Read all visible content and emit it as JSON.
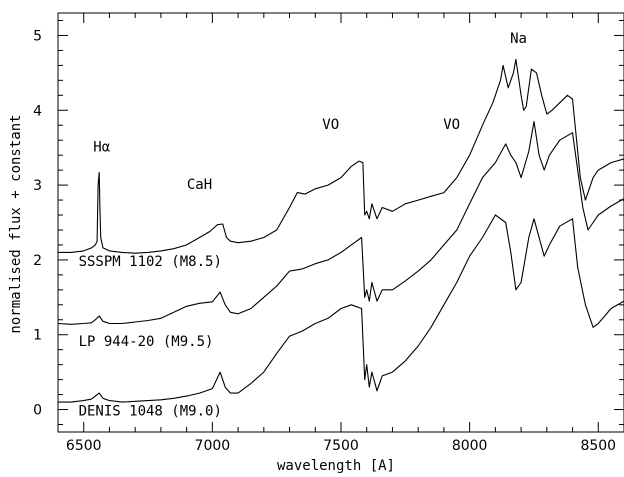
{
  "chart_data": {
    "type": "line",
    "xlabel": "wavelength [A]",
    "ylabel": "normalised flux + constant",
    "xlim": [
      6400,
      8600
    ],
    "ylim": [
      -0.3,
      5.3
    ],
    "xticks": [
      6500,
      7000,
      7500,
      8000,
      8500
    ],
    "yticks": [
      0,
      1,
      2,
      3,
      4,
      5
    ],
    "series": [
      {
        "name": "SSSPM 1102 (M8.5)",
        "color": "#000000",
        "points": [
          [
            6400,
            2.1
          ],
          [
            6450,
            2.1
          ],
          [
            6500,
            2.12
          ],
          [
            6530,
            2.16
          ],
          [
            6545,
            2.2
          ],
          [
            6552,
            2.25
          ],
          [
            6556,
            3.0
          ],
          [
            6560,
            3.17
          ],
          [
            6563,
            2.7
          ],
          [
            6566,
            2.3
          ],
          [
            6575,
            2.16
          ],
          [
            6600,
            2.12
          ],
          [
            6650,
            2.1
          ],
          [
            6700,
            2.09
          ],
          [
            6750,
            2.1
          ],
          [
            6800,
            2.12
          ],
          [
            6850,
            2.15
          ],
          [
            6900,
            2.2
          ],
          [
            6950,
            2.3
          ],
          [
            6990,
            2.38
          ],
          [
            7020,
            2.47
          ],
          [
            7040,
            2.48
          ],
          [
            7055,
            2.3
          ],
          [
            7070,
            2.25
          ],
          [
            7100,
            2.23
          ],
          [
            7150,
            2.25
          ],
          [
            7200,
            2.3
          ],
          [
            7250,
            2.4
          ],
          [
            7300,
            2.7
          ],
          [
            7330,
            2.9
          ],
          [
            7360,
            2.88
          ],
          [
            7400,
            2.95
          ],
          [
            7450,
            3.0
          ],
          [
            7500,
            3.1
          ],
          [
            7540,
            3.25
          ],
          [
            7570,
            3.32
          ],
          [
            7585,
            3.3
          ],
          [
            7592,
            2.6
          ],
          [
            7600,
            2.65
          ],
          [
            7610,
            2.55
          ],
          [
            7620,
            2.75
          ],
          [
            7640,
            2.55
          ],
          [
            7660,
            2.7
          ],
          [
            7700,
            2.65
          ],
          [
            7750,
            2.75
          ],
          [
            7800,
            2.8
          ],
          [
            7850,
            2.85
          ],
          [
            7900,
            2.9
          ],
          [
            7950,
            3.1
          ],
          [
            8000,
            3.4
          ],
          [
            8050,
            3.8
          ],
          [
            8090,
            4.1
          ],
          [
            8120,
            4.4
          ],
          [
            8130,
            4.6
          ],
          [
            8150,
            4.3
          ],
          [
            8170,
            4.5
          ],
          [
            8180,
            4.68
          ],
          [
            8200,
            4.2
          ],
          [
            8210,
            4.0
          ],
          [
            8220,
            4.05
          ],
          [
            8240,
            4.55
          ],
          [
            8260,
            4.5
          ],
          [
            8280,
            4.2
          ],
          [
            8300,
            3.95
          ],
          [
            8320,
            4.0
          ],
          [
            8350,
            4.1
          ],
          [
            8380,
            4.2
          ],
          [
            8400,
            4.15
          ],
          [
            8410,
            3.8
          ],
          [
            8430,
            3.1
          ],
          [
            8450,
            2.8
          ],
          [
            8480,
            3.1
          ],
          [
            8500,
            3.2
          ],
          [
            8550,
            3.3
          ],
          [
            8600,
            3.35
          ]
        ]
      },
      {
        "name": "LP 944-20 (M9.5)",
        "color": "#000000",
        "points": [
          [
            6400,
            1.15
          ],
          [
            6450,
            1.14
          ],
          [
            6500,
            1.15
          ],
          [
            6530,
            1.16
          ],
          [
            6545,
            1.2
          ],
          [
            6560,
            1.25
          ],
          [
            6575,
            1.18
          ],
          [
            6600,
            1.15
          ],
          [
            6650,
            1.15
          ],
          [
            6700,
            1.17
          ],
          [
            6750,
            1.19
          ],
          [
            6800,
            1.22
          ],
          [
            6850,
            1.3
          ],
          [
            6900,
            1.38
          ],
          [
            6950,
            1.42
          ],
          [
            7000,
            1.44
          ],
          [
            7030,
            1.57
          ],
          [
            7050,
            1.4
          ],
          [
            7070,
            1.3
          ],
          [
            7100,
            1.28
          ],
          [
            7150,
            1.35
          ],
          [
            7200,
            1.5
          ],
          [
            7250,
            1.65
          ],
          [
            7300,
            1.85
          ],
          [
            7350,
            1.88
          ],
          [
            7400,
            1.95
          ],
          [
            7450,
            2.0
          ],
          [
            7500,
            2.1
          ],
          [
            7540,
            2.2
          ],
          [
            7580,
            2.3
          ],
          [
            7592,
            1.5
          ],
          [
            7600,
            1.6
          ],
          [
            7610,
            1.45
          ],
          [
            7620,
            1.7
          ],
          [
            7640,
            1.45
          ],
          [
            7660,
            1.6
          ],
          [
            7700,
            1.6
          ],
          [
            7750,
            1.72
          ],
          [
            7800,
            1.85
          ],
          [
            7850,
            2.0
          ],
          [
            7900,
            2.2
          ],
          [
            7950,
            2.4
          ],
          [
            8000,
            2.75
          ],
          [
            8050,
            3.1
          ],
          [
            8100,
            3.3
          ],
          [
            8140,
            3.55
          ],
          [
            8160,
            3.4
          ],
          [
            8180,
            3.3
          ],
          [
            8200,
            3.1
          ],
          [
            8230,
            3.45
          ],
          [
            8250,
            3.85
          ],
          [
            8270,
            3.4
          ],
          [
            8290,
            3.2
          ],
          [
            8310,
            3.4
          ],
          [
            8350,
            3.6
          ],
          [
            8400,
            3.7
          ],
          [
            8420,
            3.2
          ],
          [
            8440,
            2.7
          ],
          [
            8460,
            2.4
          ],
          [
            8480,
            2.5
          ],
          [
            8500,
            2.6
          ],
          [
            8550,
            2.72
          ],
          [
            8600,
            2.82
          ]
        ]
      },
      {
        "name": "DENIS 1048 (M9.0)",
        "color": "#000000",
        "points": [
          [
            6400,
            0.1
          ],
          [
            6450,
            0.1
          ],
          [
            6500,
            0.12
          ],
          [
            6530,
            0.14
          ],
          [
            6545,
            0.18
          ],
          [
            6560,
            0.22
          ],
          [
            6575,
            0.15
          ],
          [
            6600,
            0.12
          ],
          [
            6650,
            0.1
          ],
          [
            6700,
            0.11
          ],
          [
            6750,
            0.12
          ],
          [
            6800,
            0.13
          ],
          [
            6850,
            0.15
          ],
          [
            6900,
            0.18
          ],
          [
            6950,
            0.22
          ],
          [
            7000,
            0.28
          ],
          [
            7030,
            0.5
          ],
          [
            7050,
            0.3
          ],
          [
            7070,
            0.22
          ],
          [
            7100,
            0.22
          ],
          [
            7150,
            0.35
          ],
          [
            7200,
            0.5
          ],
          [
            7250,
            0.75
          ],
          [
            7300,
            0.98
          ],
          [
            7350,
            1.05
          ],
          [
            7400,
            1.15
          ],
          [
            7450,
            1.22
          ],
          [
            7500,
            1.35
          ],
          [
            7540,
            1.4
          ],
          [
            7580,
            1.35
          ],
          [
            7592,
            0.4
          ],
          [
            7600,
            0.6
          ],
          [
            7610,
            0.3
          ],
          [
            7620,
            0.5
          ],
          [
            7640,
            0.25
          ],
          [
            7660,
            0.45
          ],
          [
            7700,
            0.5
          ],
          [
            7750,
            0.65
          ],
          [
            7800,
            0.85
          ],
          [
            7850,
            1.1
          ],
          [
            7900,
            1.4
          ],
          [
            7950,
            1.7
          ],
          [
            8000,
            2.05
          ],
          [
            8050,
            2.3
          ],
          [
            8100,
            2.6
          ],
          [
            8140,
            2.5
          ],
          [
            8160,
            2.1
          ],
          [
            8180,
            1.6
          ],
          [
            8200,
            1.7
          ],
          [
            8230,
            2.3
          ],
          [
            8250,
            2.55
          ],
          [
            8270,
            2.3
          ],
          [
            8290,
            2.05
          ],
          [
            8310,
            2.2
          ],
          [
            8350,
            2.45
          ],
          [
            8400,
            2.55
          ],
          [
            8420,
            1.9
          ],
          [
            8450,
            1.4
          ],
          [
            8480,
            1.1
          ],
          [
            8500,
            1.15
          ],
          [
            8550,
            1.35
          ],
          [
            8600,
            1.45
          ]
        ]
      }
    ],
    "annotations": [
      {
        "text": "Hα",
        "x": 6570,
        "y": 3.45
      },
      {
        "text": "CaH",
        "x": 6950,
        "y": 2.95
      },
      {
        "text": "VO",
        "x": 7460,
        "y": 3.75
      },
      {
        "text": "VO",
        "x": 7930,
        "y": 3.75
      },
      {
        "text": "Na",
        "x": 8190,
        "y": 4.9
      }
    ],
    "series_labels": [
      {
        "text": "SSSPM 1102 (M8.5)",
        "x": 6480,
        "y": 1.92
      },
      {
        "text": "LP 944-20 (M9.5)",
        "x": 6480,
        "y": 0.85
      },
      {
        "text": "DENIS 1048 (M9.0)",
        "x": 6480,
        "y": -0.08
      }
    ],
    "grid": false,
    "legend": "none"
  }
}
